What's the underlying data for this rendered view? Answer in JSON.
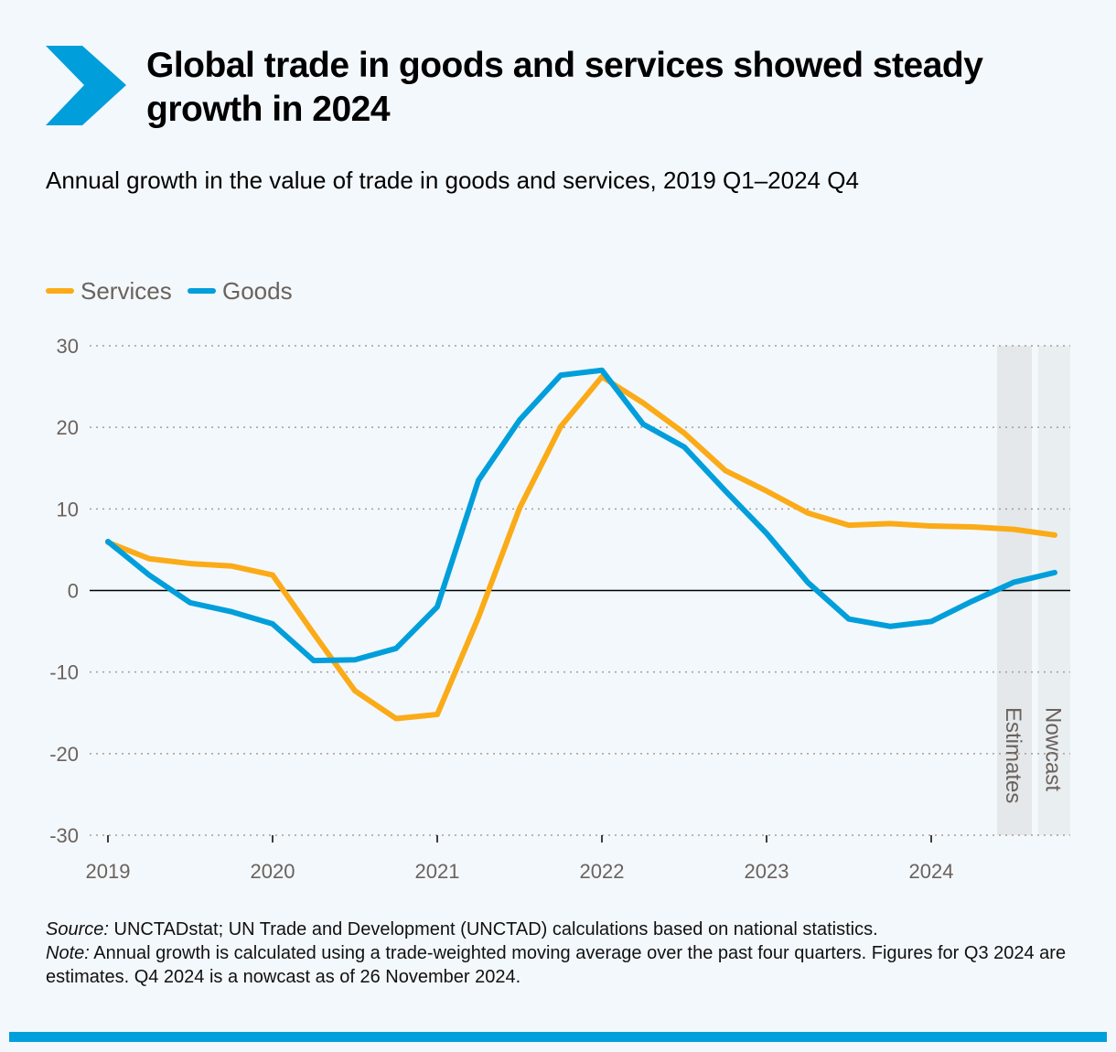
{
  "title": "Global trade in goods and services showed steady growth in 2024",
  "subtitle": "Annual growth in the value of trade in goods and services, 2019 Q1–2024 Q4",
  "source_label": "Source:",
  "source_text": " UNCTADstat; UN Trade and Development (UNCTAD) calculations based on national statistics.",
  "note_label": "Note:",
  "note_text": " Annual growth is calculated using a trade-weighted moving average over the past four quarters. Figures for Q3 2024 are estimates. Q4 2024 is a nowcast as of 26 November 2024.",
  "colors": {
    "accent": "#009edb",
    "services": "#fbab18",
    "goods": "#009edb"
  },
  "chart_data": {
    "type": "line",
    "x": [
      "2019 Q1",
      "2019 Q2",
      "2019 Q3",
      "2019 Q4",
      "2020 Q1",
      "2020 Q2",
      "2020 Q3",
      "2020 Q4",
      "2021 Q1",
      "2021 Q2",
      "2021 Q3",
      "2021 Q4",
      "2022 Q1",
      "2022 Q2",
      "2022 Q3",
      "2022 Q4",
      "2023 Q1",
      "2023 Q2",
      "2023 Q3",
      "2023 Q4",
      "2024 Q1",
      "2024 Q2",
      "2024 Q3",
      "2024 Q4"
    ],
    "xticks": [
      "2019",
      "2020",
      "2021",
      "2022",
      "2023",
      "2024"
    ],
    "yticks": [
      "30",
      "20",
      "10",
      "0",
      "-10",
      "-20",
      "-30"
    ],
    "ylim": [
      -30,
      30
    ],
    "grid": true,
    "legend": "top-left",
    "series": [
      {
        "name": "Services",
        "color": "#fbab18",
        "values": [
          5.9,
          3.9,
          3.3,
          3.0,
          1.9,
          -5.3,
          -12.3,
          -15.7,
          -15.2,
          -3.3,
          10.1,
          20.1,
          26.2,
          23.0,
          19.3,
          14.7,
          12.2,
          9.5,
          8.0,
          8.2,
          7.9,
          7.8,
          7.5,
          6.8
        ]
      },
      {
        "name": "Goods",
        "color": "#009edb",
        "values": [
          6.0,
          1.9,
          -1.5,
          -2.6,
          -4.1,
          -8.6,
          -8.5,
          -7.1,
          -2.0,
          13.5,
          20.9,
          26.4,
          27.0,
          20.4,
          17.6,
          12.2,
          7.0,
          1.0,
          -3.5,
          -4.4,
          -3.8,
          -1.3,
          1.0,
          2.2
        ]
      }
    ],
    "bands": [
      {
        "label": "Estimates",
        "from": "2024 Q3",
        "color": "#e4e8eb"
      },
      {
        "label": "Nowcast",
        "from": "2024 Q4",
        "color": "#e9eef1"
      }
    ]
  }
}
